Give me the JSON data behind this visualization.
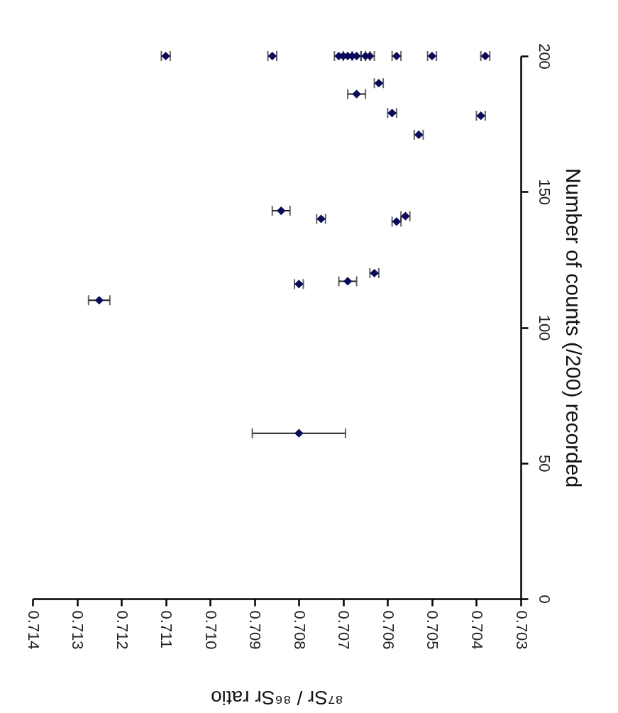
{
  "chart_data": {
    "type": "scatter",
    "xlabel": "⁸⁷Sr / ⁸⁶Sr ratio",
    "ylabel": "Number of counts (/200) recorded",
    "marker": "diamond",
    "xlim": [
      0.714,
      0.703
    ],
    "xticks": [
      0.714,
      0.713,
      0.712,
      0.711,
      {
        "value": 0.71,
        "label": "0.710"
      },
      0.709,
      0.708,
      0.707,
      0.706,
      0.705,
      0.704,
      0.703
    ],
    "ylim": [
      0,
      200
    ],
    "yticks": [
      0,
      50,
      100,
      150,
      200
    ],
    "series": [
      {
        "color": "#0a0a5a",
        "x": [
          0.711,
          0.7086,
          0.7071,
          0.707,
          0.7069,
          0.7068,
          0.7067,
          0.7065,
          0.7064,
          0.7058,
          0.705,
          0.7038,
          0.7062,
          0.7067,
          0.7059,
          0.7039,
          0.7053,
          0.7084,
          0.7075,
          0.7056,
          0.7058,
          0.7063,
          0.708,
          0.7069,
          0.7125,
          0.708
        ],
        "values": [
          200,
          200,
          200,
          200,
          200,
          200,
          200,
          200,
          200,
          200,
          200,
          200,
          190,
          186,
          179,
          178,
          171,
          143,
          140,
          141,
          139,
          120,
          116,
          117,
          110,
          61
        ],
        "xerrors": [
          0.0001,
          0.0001,
          0.0001,
          null,
          null,
          null,
          0.0001,
          0.0001,
          0.0001,
          0.0001,
          0.0001,
          0.0001,
          0.0001,
          0.0002,
          0.0001,
          0.0001,
          0.0001,
          0.0002,
          0.0001,
          0.0001,
          0.0001,
          0.0001,
          0.0001,
          0.0002,
          0.00024,
          0.00105
        ]
      }
    ]
  }
}
